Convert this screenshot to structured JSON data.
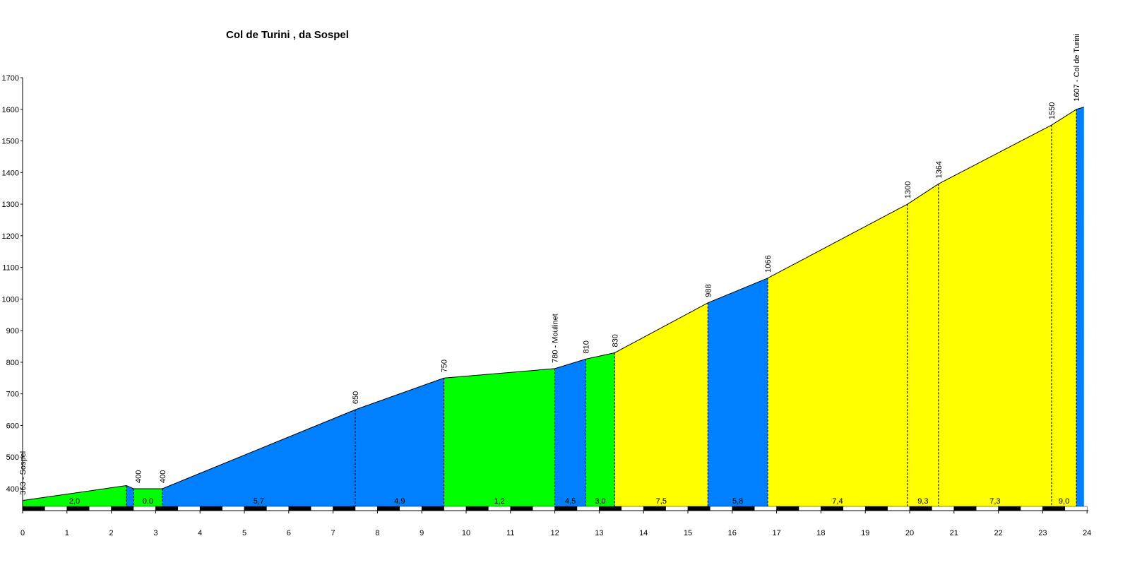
{
  "chart_data": {
    "type": "area",
    "title": "Col de Turini , da Sospel",
    "xlabel": "",
    "ylabel": "",
    "xlim": [
      0,
      24
    ],
    "ylim": [
      340,
      1700
    ],
    "x_ticks": [
      "0",
      "1",
      "2",
      "3",
      "4",
      "5",
      "6",
      "7",
      "8",
      "9",
      "10",
      "11",
      "12",
      "13",
      "14",
      "15",
      "16",
      "17",
      "18",
      "19",
      "20",
      "21",
      "22",
      "23",
      "24"
    ],
    "y_ticks": [
      "400",
      "500",
      "600",
      "700",
      "800",
      "900",
      "1000",
      "1100",
      "1200",
      "1300",
      "1400",
      "1500",
      "1600",
      "1700"
    ],
    "profile": [
      {
        "km": 0.0,
        "alt": 363
      },
      {
        "km": 2.34,
        "alt": 410
      },
      {
        "km": 2.5,
        "alt": 400
      },
      {
        "km": 3.15,
        "alt": 400
      },
      {
        "km": 7.5,
        "alt": 650
      },
      {
        "km": 9.5,
        "alt": 750
      },
      {
        "km": 12.0,
        "alt": 780
      },
      {
        "km": 12.7,
        "alt": 810
      },
      {
        "km": 13.35,
        "alt": 830
      },
      {
        "km": 15.45,
        "alt": 988
      },
      {
        "km": 16.8,
        "alt": 1066
      },
      {
        "km": 19.95,
        "alt": 1300
      },
      {
        "km": 20.65,
        "alt": 1364
      },
      {
        "km": 23.2,
        "alt": 1550
      },
      {
        "km": 23.76,
        "alt": 1600
      },
      {
        "km": 23.93,
        "alt": 1607
      }
    ],
    "segments": [
      {
        "from": 0.0,
        "to": 2.34,
        "gradient": "2,0",
        "color": "#00ff00"
      },
      {
        "from": 2.34,
        "to": 2.5,
        "gradient": "",
        "color": "#0080ff"
      },
      {
        "from": 2.5,
        "to": 3.15,
        "gradient": "0,0",
        "color": "#00ff00"
      },
      {
        "from": 3.15,
        "to": 7.5,
        "gradient": "5,7",
        "color": "#0080ff"
      },
      {
        "from": 7.5,
        "to": 9.5,
        "gradient": "4,9",
        "color": "#0080ff"
      },
      {
        "from": 9.5,
        "to": 12.0,
        "gradient": "1,2",
        "color": "#00ff00"
      },
      {
        "from": 12.0,
        "to": 12.7,
        "gradient": "4,5",
        "color": "#0080ff"
      },
      {
        "from": 12.7,
        "to": 13.35,
        "gradient": "3,0",
        "color": "#00ff00"
      },
      {
        "from": 13.35,
        "to": 15.45,
        "gradient": "7,5",
        "color": "#ffff00"
      },
      {
        "from": 15.45,
        "to": 16.8,
        "gradient": "5,8",
        "color": "#0080ff"
      },
      {
        "from": 16.8,
        "to": 19.95,
        "gradient": "7,4",
        "color": "#ffff00"
      },
      {
        "from": 19.95,
        "to": 20.65,
        "gradient": "9,3",
        "color": "#ffff00"
      },
      {
        "from": 20.65,
        "to": 23.2,
        "gradient": "7,3",
        "color": "#ffff00"
      },
      {
        "from": 23.2,
        "to": 23.76,
        "gradient": "9,0",
        "color": "#ffff00"
      },
      {
        "from": 23.76,
        "to": 23.93,
        "gradient": "",
        "color": "#0080ff"
      }
    ],
    "elevation_labels": [
      {
        "km": 0.0,
        "alt": 363,
        "text": "363 - Sospel"
      },
      {
        "km": 2.6,
        "alt": 400,
        "text": "400"
      },
      {
        "km": 3.15,
        "alt": 400,
        "text": "400"
      },
      {
        "km": 7.5,
        "alt": 650,
        "text": "650"
      },
      {
        "km": 9.5,
        "alt": 750,
        "text": "750"
      },
      {
        "km": 12.0,
        "alt": 780,
        "text": "780 - Moulinet"
      },
      {
        "km": 12.7,
        "alt": 810,
        "text": "810"
      },
      {
        "km": 13.35,
        "alt": 830,
        "text": "830"
      },
      {
        "km": 15.45,
        "alt": 988,
        "text": "988"
      },
      {
        "km": 16.8,
        "alt": 1066,
        "text": "1066"
      },
      {
        "km": 19.95,
        "alt": 1300,
        "text": "1300"
      },
      {
        "km": 20.65,
        "alt": 1364,
        "text": "1364"
      },
      {
        "km": 23.2,
        "alt": 1550,
        "text": "1550"
      },
      {
        "km": 23.93,
        "alt": 1607,
        "text": "1607 - Col de Turini"
      }
    ],
    "grid": false,
    "legend": "none"
  }
}
